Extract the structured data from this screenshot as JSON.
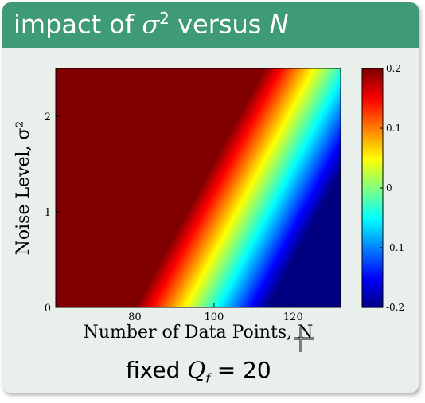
{
  "slide": {
    "title_prefix": "impact of ",
    "title_sigma": "σ",
    "title_sup": "2",
    "title_mid": " versus ",
    "title_n": "N",
    "caption_prefix": "fixed ",
    "caption_q": "Q",
    "caption_sub": "f",
    "caption_suffix": " = 20"
  },
  "chart_data": {
    "type": "heatmap",
    "xlabel": "Number of Data Points, N",
    "ylabel": "Noise Level, σ²",
    "x_ticks": [
      80,
      100,
      120
    ],
    "y_ticks": [
      0,
      1,
      2
    ],
    "xlim": [
      60,
      132
    ],
    "ylim": [
      0,
      2.5
    ],
    "colorbar": {
      "ticks": [
        "0.2",
        "0.1",
        "0",
        "-0.1",
        "-0.2"
      ],
      "range": [
        -0.2,
        0.2
      ],
      "colormap": "jet"
    },
    "description_boundary": "value saturates at 0.2 left of line N ≈ 80 + 13·σ², decreasing to about -0.2 at high N and low σ²"
  },
  "colors": {
    "banner": "#3f9a76",
    "card": "#e9f0ec"
  }
}
